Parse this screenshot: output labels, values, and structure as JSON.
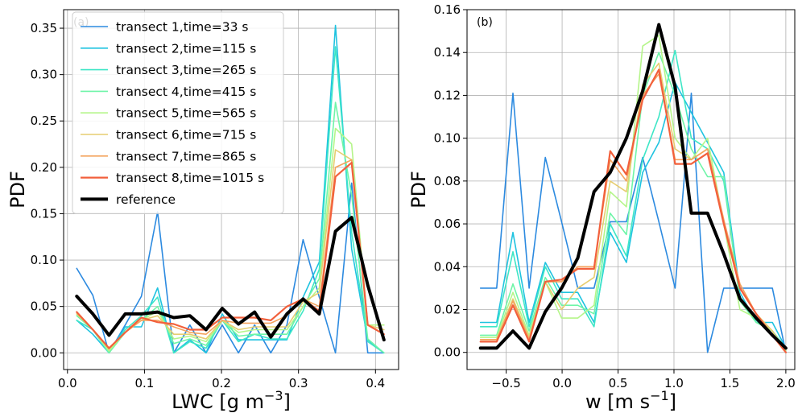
{
  "chart_data": [
    {
      "type": "line",
      "panel_label": "(a)",
      "xlabel": "LWC [g m",
      "xlabel_sup": "−3",
      "xlabel_end": "]",
      "ylabel": "PDF",
      "xlim": [
        -0.005,
        0.43
      ],
      "ylim": [
        -0.018,
        0.37
      ],
      "xticks": [
        0.0,
        0.1,
        0.2,
        0.3,
        0.4
      ],
      "xtick_labels": [
        "0.0",
        "0.1",
        "0.2",
        "0.3",
        "0.4"
      ],
      "yticks": [
        0.0,
        0.05,
        0.1,
        0.15,
        0.2,
        0.25,
        0.3,
        0.35
      ],
      "ytick_labels": [
        "0.00",
        "0.05",
        "0.10",
        "0.15",
        "0.20",
        "0.25",
        "0.30",
        "0.35"
      ],
      "grid": true,
      "legend_position": "top-left",
      "x": [
        0.012,
        0.033,
        0.054,
        0.075,
        0.096,
        0.117,
        0.138,
        0.159,
        0.18,
        0.201,
        0.222,
        0.243,
        0.264,
        0.285,
        0.306,
        0.327,
        0.348,
        0.369,
        0.39,
        0.411
      ],
      "series": [
        {
          "name": "transect 1,time=33 s",
          "color": "#2c8ae0",
          "width": 1.6,
          "values": [
            0.091,
            0.062,
            0.0,
            0.03,
            0.061,
            0.152,
            0.0,
            0.03,
            0.0,
            0.03,
            0.0,
            0.03,
            0.0,
            0.03,
            0.122,
            0.06,
            0.0,
            0.183,
            0.0,
            0.0
          ]
        },
        {
          "name": "transect 2,time=115 s",
          "color": "#1fc3e0",
          "width": 1.6,
          "values": [
            0.035,
            0.02,
            0.0,
            0.028,
            0.028,
            0.07,
            0.0,
            0.014,
            0.0,
            0.042,
            0.014,
            0.014,
            0.014,
            0.014,
            0.06,
            0.098,
            0.353,
            0.112,
            0.014,
            0.0
          ]
        },
        {
          "name": "transect 3,time=265 s",
          "color": "#3ee6c6",
          "width": 1.6,
          "values": [
            0.035,
            0.025,
            0.0,
            0.025,
            0.04,
            0.06,
            0.0,
            0.012,
            0.005,
            0.035,
            0.012,
            0.02,
            0.015,
            0.015,
            0.045,
            0.09,
            0.33,
            0.13,
            0.012,
            0.0
          ]
        },
        {
          "name": "transect 4,time=415 s",
          "color": "#6ff5a8",
          "width": 1.6,
          "values": [
            0.04,
            0.025,
            0.0,
            0.022,
            0.035,
            0.05,
            0.01,
            0.015,
            0.008,
            0.035,
            0.018,
            0.02,
            0.02,
            0.02,
            0.05,
            0.08,
            0.27,
            0.17,
            0.015,
            0.0
          ]
        },
        {
          "name": "transect 5,time=565 s",
          "color": "#b5f58a",
          "width": 1.6,
          "values": [
            0.042,
            0.025,
            0.002,
            0.022,
            0.035,
            0.045,
            0.015,
            0.018,
            0.012,
            0.035,
            0.022,
            0.025,
            0.025,
            0.025,
            0.05,
            0.07,
            0.242,
            0.225,
            0.03,
            0.03
          ]
        },
        {
          "name": "transect 6,time=715 s",
          "color": "#e6cd70",
          "width": 1.6,
          "values": [
            0.042,
            0.025,
            0.004,
            0.022,
            0.035,
            0.04,
            0.02,
            0.02,
            0.015,
            0.035,
            0.025,
            0.028,
            0.028,
            0.028,
            0.055,
            0.065,
            0.219,
            0.208,
            0.03,
            0.025
          ]
        },
        {
          "name": "transect 7,time=865 s",
          "color": "#f4a35c",
          "width": 1.6,
          "values": [
            0.044,
            0.025,
            0.005,
            0.022,
            0.035,
            0.035,
            0.028,
            0.022,
            0.02,
            0.035,
            0.032,
            0.032,
            0.032,
            0.04,
            0.058,
            0.05,
            0.2,
            0.208,
            0.03,
            0.02
          ]
        },
        {
          "name": "transect 8,time=1015 s",
          "color": "#f2603c",
          "width": 2.2,
          "values": [
            0.044,
            0.025,
            0.005,
            0.022,
            0.038,
            0.033,
            0.031,
            0.025,
            0.025,
            0.038,
            0.038,
            0.038,
            0.035,
            0.05,
            0.058,
            0.045,
            0.19,
            0.205,
            0.03,
            0.02
          ]
        },
        {
          "name": "reference",
          "color": "#000000",
          "width": 4,
          "values": [
            0.061,
            0.042,
            0.019,
            0.042,
            0.042,
            0.044,
            0.038,
            0.04,
            0.025,
            0.048,
            0.031,
            0.044,
            0.017,
            0.042,
            0.058,
            0.042,
            0.131,
            0.146,
            0.073,
            0.014
          ]
        }
      ]
    },
    {
      "type": "line",
      "panel_label": "(b)",
      "xlabel": "w [m s",
      "xlabel_sup": "−1",
      "xlabel_end": "]",
      "ylabel": "PDF",
      "xlim": [
        -0.85,
        2.08
      ],
      "ylim": [
        -0.008,
        0.16
      ],
      "xticks": [
        -0.5,
        0.0,
        0.5,
        1.0,
        1.5,
        2.0
      ],
      "xtick_labels": [
        "−0.5",
        "0.0",
        "0.5",
        "1.0",
        "1.5",
        "2.0"
      ],
      "yticks": [
        0.0,
        0.02,
        0.04,
        0.06,
        0.08,
        0.1,
        0.12,
        0.14,
        0.16
      ],
      "ytick_labels": [
        "0.00",
        "0.02",
        "0.04",
        "0.06",
        "0.08",
        "0.10",
        "0.12",
        "0.14",
        "0.16"
      ],
      "grid": true,
      "x": [
        -0.73,
        -0.585,
        -0.44,
        -0.295,
        -0.15,
        -0.005,
        0.14,
        0.285,
        0.43,
        0.575,
        0.72,
        0.865,
        1.01,
        1.155,
        1.3,
        1.445,
        1.59,
        1.735,
        1.88,
        2.0
      ],
      "series": [
        {
          "name": "transect 1",
          "color": "#2c8ae0",
          "width": 1.6,
          "values": [
            0.03,
            0.03,
            0.121,
            0.03,
            0.091,
            0.061,
            0.03,
            0.03,
            0.061,
            0.061,
            0.091,
            0.061,
            0.03,
            0.121,
            0.0,
            0.03,
            0.03,
            0.03,
            0.03,
            0.0
          ]
        },
        {
          "name": "transect 2",
          "color": "#1fc3e0",
          "width": 1.6,
          "values": [
            0.014,
            0.014,
            0.056,
            0.014,
            0.042,
            0.028,
            0.028,
            0.014,
            0.056,
            0.042,
            0.084,
            0.098,
            0.126,
            0.112,
            0.098,
            0.084,
            0.028,
            0.014,
            0.014,
            0.002
          ]
        },
        {
          "name": "transect 3",
          "color": "#3ee6c6",
          "width": 1.6,
          "values": [
            0.012,
            0.012,
            0.047,
            0.012,
            0.04,
            0.025,
            0.025,
            0.012,
            0.06,
            0.045,
            0.09,
            0.11,
            0.141,
            0.1,
            0.095,
            0.08,
            0.025,
            0.015,
            0.01,
            0.002
          ]
        },
        {
          "name": "transect 4",
          "color": "#6ff5a8",
          "width": 1.6,
          "values": [
            0.008,
            0.008,
            0.032,
            0.01,
            0.035,
            0.022,
            0.022,
            0.018,
            0.065,
            0.055,
            0.12,
            0.14,
            0.12,
            0.095,
            0.082,
            0.082,
            0.024,
            0.014,
            0.01,
            0.001
          ]
        },
        {
          "name": "transect 5",
          "color": "#b5f58a",
          "width": 1.6,
          "values": [
            0.007,
            0.007,
            0.028,
            0.008,
            0.033,
            0.016,
            0.016,
            0.022,
            0.075,
            0.068,
            0.143,
            0.148,
            0.1,
            0.09,
            0.1,
            0.06,
            0.02,
            0.016,
            0.01,
            0.001
          ]
        },
        {
          "name": "transect 6",
          "color": "#e6cd70",
          "width": 1.6,
          "values": [
            0.006,
            0.006,
            0.025,
            0.007,
            0.033,
            0.02,
            0.03,
            0.035,
            0.08,
            0.075,
            0.125,
            0.135,
            0.095,
            0.09,
            0.095,
            0.06,
            0.03,
            0.018,
            0.01,
            0.0
          ]
        },
        {
          "name": "transect 7",
          "color": "#f4a35c",
          "width": 1.6,
          "values": [
            0.006,
            0.006,
            0.024,
            0.006,
            0.033,
            0.033,
            0.04,
            0.04,
            0.09,
            0.08,
            0.12,
            0.13,
            0.09,
            0.09,
            0.095,
            0.062,
            0.032,
            0.018,
            0.008,
            0.0
          ]
        },
        {
          "name": "transect 8",
          "color": "#f2603c",
          "width": 2.2,
          "values": [
            0.005,
            0.005,
            0.022,
            0.005,
            0.033,
            0.034,
            0.039,
            0.039,
            0.094,
            0.083,
            0.118,
            0.132,
            0.088,
            0.088,
            0.093,
            0.06,
            0.03,
            0.018,
            0.008,
            0.0
          ]
        },
        {
          "name": "reference",
          "color": "#000000",
          "width": 4,
          "values": [
            0.002,
            0.002,
            0.01,
            0.002,
            0.019,
            0.03,
            0.044,
            0.075,
            0.084,
            0.1,
            0.122,
            0.153,
            0.124,
            0.065,
            0.065,
            0.046,
            0.025,
            0.016,
            0.008,
            0.002
          ]
        }
      ]
    }
  ]
}
